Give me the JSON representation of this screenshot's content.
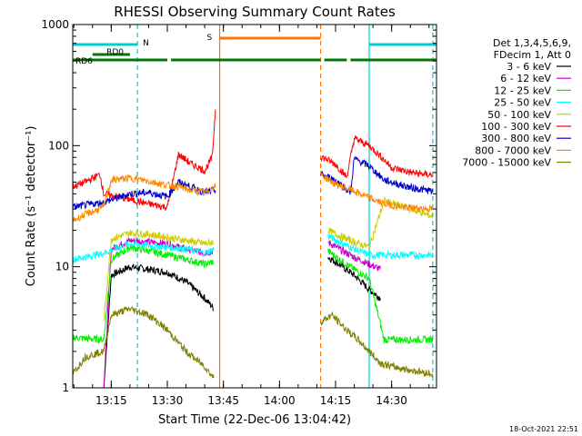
{
  "chart_data": {
    "type": "line",
    "title": "RHESSI Observing Summary Count Rates",
    "xlabel": "Start Time (22-Dec-06 13:04:42)",
    "ylabel": "Count Rate (s⁻¹ detector⁻¹)",
    "yscale": "log",
    "xlim": [
      "13:04:42",
      "14:42:00"
    ],
    "ylim": [
      1,
      1000
    ],
    "x_ticks": [
      "13:15",
      "13:30",
      "13:45",
      "14:00",
      "14:15",
      "14:30"
    ],
    "y_ticks": [
      "1",
      "10",
      "100",
      "1000"
    ],
    "grid": false,
    "legend_position": "right",
    "legend_header": [
      "Det 1,3,4,5,6,9,",
      "FDecim 1, Att 0"
    ],
    "timestamp": "18-Oct-2021 22:51",
    "series": [
      {
        "name": "3 - 6 keV",
        "color": "#000000",
        "x": [
          "13:13:00",
          "13:15:00",
          "13:20:00",
          "13:25:00",
          "13:30:00",
          "13:35:00",
          "13:40:00",
          "13:42:30",
          "14:13:00",
          "14:16:00",
          "14:20:00",
          "14:24:00",
          "14:27:00"
        ],
        "y": [
          1.0,
          8.5,
          10.0,
          9.5,
          9.0,
          7.5,
          5.5,
          4.5,
          12.0,
          10.5,
          8.5,
          6.5,
          5.5
        ]
      },
      {
        "name": "6 - 12 keV",
        "color": "#cc00cc",
        "x": [
          "13:13:00",
          "13:15:00",
          "13:20:00",
          "13:25:00",
          "13:30:00",
          "13:35:00",
          "13:40:00",
          "13:42:30",
          "14:13:00",
          "14:16:00",
          "14:20:00",
          "14:24:00",
          "14:27:00"
        ],
        "y": [
          1.0,
          14.0,
          16.5,
          16.0,
          15.5,
          14.0,
          13.0,
          13.5,
          16.0,
          14.0,
          12.0,
          10.5,
          9.5
        ]
      },
      {
        "name": "12 - 25 keV",
        "color": "#00ee00",
        "x": [
          "13:04:42",
          "13:13:00",
          "13:15:00",
          "13:20:00",
          "13:25:00",
          "13:30:00",
          "13:35:00",
          "13:40:00",
          "13:42:30",
          "14:13:00",
          "14:16:00",
          "14:20:00",
          "14:24:00",
          "14:28:00",
          "14:35:00",
          "14:41:00"
        ],
        "y": [
          2.6,
          2.5,
          11.5,
          14.5,
          13.5,
          12.5,
          11.5,
          10.5,
          11.0,
          13.5,
          11.5,
          9.5,
          8.0,
          2.5,
          2.5,
          2.5
        ]
      },
      {
        "name": "25 - 50 keV",
        "color": "#00ffff",
        "x": [
          "13:04:42",
          "13:08:00",
          "13:13:00",
          "13:20:00",
          "13:25:00",
          "13:30:00",
          "13:35:00",
          "13:40:00",
          "13:42:30",
          "14:13:00",
          "14:16:00",
          "14:20:00",
          "14:24:00",
          "14:28:00",
          "14:35:00",
          "14:41:00"
        ],
        "y": [
          11.5,
          12.0,
          13.0,
          15.5,
          15.0,
          14.5,
          14.0,
          13.0,
          14.0,
          18.0,
          16.0,
          14.0,
          12.5,
          12.5,
          12.5,
          12.5
        ]
      },
      {
        "name": "50 - 100 keV",
        "color": "#cccc00",
        "x": [
          "13:13:00",
          "13:15:00",
          "13:20:00",
          "13:25:00",
          "13:30:00",
          "13:35:00",
          "13:40:00",
          "13:42:30",
          "14:13:00",
          "14:16:00",
          "14:20:00",
          "14:24:00",
          "14:28:00",
          "14:35:00",
          "14:41:00"
        ],
        "y": [
          3.5,
          17.0,
          19.0,
          18.5,
          17.5,
          16.5,
          15.5,
          16.0,
          20.0,
          18.0,
          16.0,
          14.5,
          35.0,
          30.0,
          26.0
        ]
      },
      {
        "name": "100 - 300 keV",
        "color": "#ff0000",
        "x": [
          "13:04:42",
          "13:08:00",
          "13:12:00",
          "13:13:00",
          "13:20:00",
          "13:25:00",
          "13:30:00",
          "13:33:00",
          "13:36:00",
          "13:40:00",
          "13:42:00",
          "13:43:00",
          "14:11:00",
          "14:15:00",
          "14:18:00",
          "14:20:00",
          "14:24:00",
          "14:27:00",
          "14:30:00",
          "14:35:00",
          "14:41:00"
        ],
        "y": [
          46.0,
          50.0,
          58.0,
          40.0,
          36.0,
          33.0,
          31.0,
          85.0,
          72.0,
          62.0,
          80.0,
          230.0,
          82.0,
          70.0,
          55.0,
          115.0,
          100.0,
          82.0,
          66.0,
          60.0,
          57.0
        ]
      },
      {
        "name": "300 - 800 keV",
        "color": "#0000cc",
        "x": [
          "13:04:42",
          "13:10:00",
          "13:13:00",
          "13:20:00",
          "13:25:00",
          "13:30:00",
          "13:33:00",
          "13:36:00",
          "13:40:00",
          "13:43:00",
          "14:11:00",
          "14:15:00",
          "14:19:00",
          "14:20:00",
          "14:24:00",
          "14:28:00",
          "14:35:00",
          "14:41:00"
        ],
        "y": [
          31.0,
          33.0,
          34.0,
          40.0,
          41.0,
          38.0,
          50.0,
          46.0,
          41.0,
          43.0,
          58.0,
          52.0,
          41.0,
          78.0,
          68.0,
          52.0,
          45.0,
          42.0
        ]
      },
      {
        "name": "800 - 7000 keV",
        "color": "#ff8800",
        "x": [
          "13:04:42",
          "13:08:00",
          "13:13:00",
          "13:15:00",
          "13:20:00",
          "13:25:00",
          "13:30:00",
          "13:33:00",
          "13:36:00",
          "13:40:00",
          "13:43:00",
          "14:11:00",
          "14:15:00",
          "14:20:00",
          "14:24:00",
          "14:28:00",
          "14:33:00",
          "14:41:00"
        ],
        "y": [
          24.0,
          27.0,
          31.0,
          52.0,
          54.0,
          51.0,
          47.0,
          46.0,
          43.0,
          41.0,
          47.0,
          58.0,
          48.0,
          42.0,
          37.0,
          33.0,
          31.0,
          30.0
        ]
      },
      {
        "name": "7000 - 15000 keV",
        "color": "#808000",
        "x": [
          "13:04:42",
          "13:08:00",
          "13:13:00",
          "13:15:00",
          "13:20:00",
          "13:25:00",
          "13:30:00",
          "13:35:00",
          "13:40:00",
          "13:42:30",
          "14:11:00",
          "14:14:00",
          "14:18:00",
          "14:21:00",
          "14:24:00",
          "14:27:00",
          "14:30:00",
          "14:35:00",
          "14:41:00"
        ],
        "y": [
          1.3,
          1.8,
          2.0,
          4.0,
          4.5,
          4.0,
          3.0,
          2.0,
          1.5,
          1.2,
          3.5,
          4.0,
          3.0,
          2.5,
          2.0,
          1.6,
          1.5,
          1.4,
          1.3
        ]
      }
    ],
    "flags": [
      {
        "label": "RD6",
        "color": "#007700",
        "segments": [
          [
            "13:04:42",
            "13:30:00"
          ],
          [
            "13:31:00",
            "14:11:00"
          ],
          [
            "14:12:00",
            "14:18:00"
          ],
          [
            "14:19:00",
            "14:42:00"
          ]
        ]
      },
      {
        "label": "RD0",
        "color": "#007700",
        "segments": [
          [
            "13:10:00",
            "13:20:00"
          ]
        ]
      },
      {
        "label": "N",
        "color": "#00cccc",
        "segments": [
          [
            "13:04:42",
            "13:22:00"
          ],
          [
            "14:24:00",
            "14:42:00"
          ]
        ]
      },
      {
        "label": "S",
        "color": "#ff7700",
        "segments": [
          [
            "13:44:00",
            "14:11:00"
          ]
        ]
      }
    ],
    "vlines": [
      {
        "x": "13:22:00",
        "color": "#00cccc",
        "style": "dashed"
      },
      {
        "x": "13:44:00",
        "color": "#ff7700",
        "style": "solid"
      },
      {
        "x": "14:11:00",
        "color": "#ff7700",
        "style": "dashed"
      },
      {
        "x": "14:24:00",
        "color": "#00cccc",
        "style": "solid"
      },
      {
        "x": "14:41:00",
        "color": "#00cccc",
        "style": "dashed"
      }
    ]
  }
}
